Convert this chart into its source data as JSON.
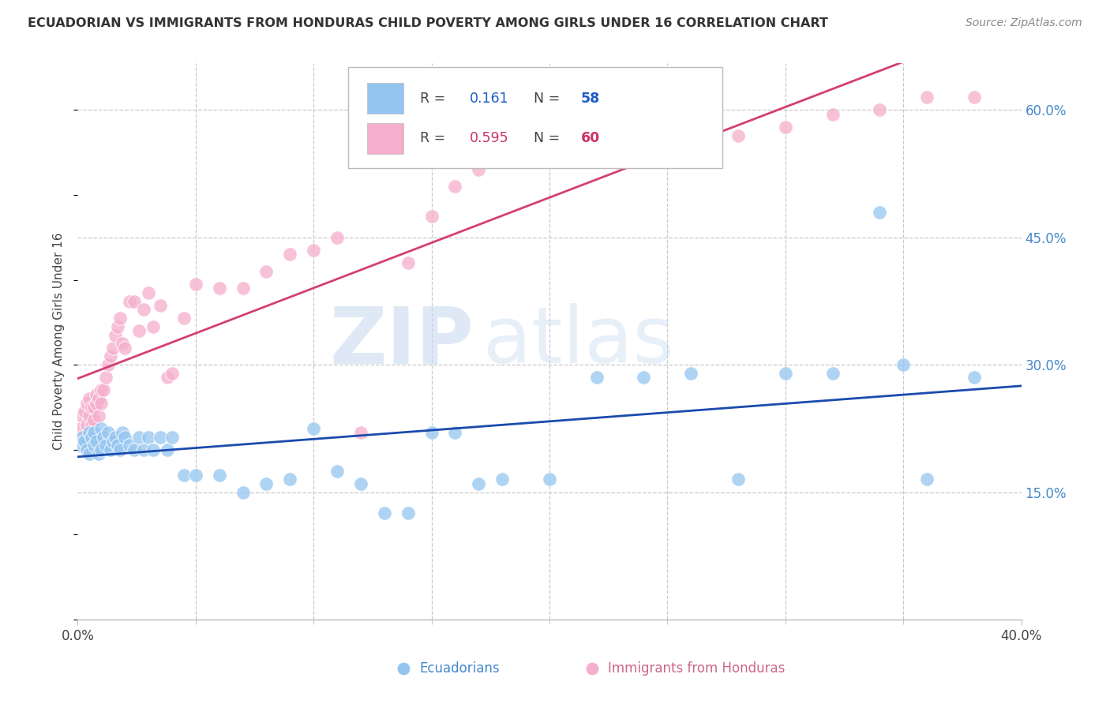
{
  "title": "ECUADORIAN VS IMMIGRANTS FROM HONDURAS CHILD POVERTY AMONG GIRLS UNDER 16 CORRELATION CHART",
  "source": "Source: ZipAtlas.com",
  "ylabel": "Child Poverty Among Girls Under 16",
  "xlim": [
    0.0,
    0.4
  ],
  "ylim": [
    0.0,
    0.655
  ],
  "y_ticks_right": [
    0.15,
    0.3,
    0.45,
    0.6
  ],
  "y_tick_labels_right": [
    "15.0%",
    "30.0%",
    "45.0%",
    "60.0%"
  ],
  "watermark_zip": "ZIP",
  "watermark_atlas": "atlas",
  "legend_blue_r": "0.161",
  "legend_blue_n": "58",
  "legend_pink_r": "0.595",
  "legend_pink_n": "60",
  "blue_color": "#94C5F0",
  "pink_color": "#F5AECC",
  "blue_line_color": "#1A4BAD",
  "pink_line_color": "#D44070",
  "grid_color": "#C8C8C8",
  "background_color": "#FFFFFF",
  "blue_x": [
    0.001,
    0.002,
    0.003,
    0.004,
    0.005,
    0.005,
    0.006,
    0.007,
    0.007,
    0.008,
    0.009,
    0.01,
    0.01,
    0.011,
    0.012,
    0.013,
    0.014,
    0.015,
    0.016,
    0.017,
    0.018,
    0.019,
    0.02,
    0.022,
    0.024,
    0.026,
    0.028,
    0.03,
    0.032,
    0.035,
    0.038,
    0.04,
    0.045,
    0.05,
    0.06,
    0.07,
    0.08,
    0.09,
    0.1,
    0.11,
    0.12,
    0.13,
    0.14,
    0.15,
    0.16,
    0.17,
    0.18,
    0.2,
    0.22,
    0.24,
    0.26,
    0.28,
    0.3,
    0.32,
    0.34,
    0.36,
    0.38,
    0.35
  ],
  "blue_y": [
    0.205,
    0.215,
    0.21,
    0.2,
    0.22,
    0.195,
    0.215,
    0.205,
    0.22,
    0.21,
    0.195,
    0.225,
    0.2,
    0.215,
    0.205,
    0.22,
    0.2,
    0.21,
    0.215,
    0.205,
    0.2,
    0.22,
    0.215,
    0.205,
    0.2,
    0.215,
    0.2,
    0.215,
    0.2,
    0.215,
    0.2,
    0.215,
    0.17,
    0.17,
    0.17,
    0.15,
    0.16,
    0.165,
    0.225,
    0.175,
    0.16,
    0.125,
    0.125,
    0.22,
    0.22,
    0.16,
    0.165,
    0.165,
    0.285,
    0.285,
    0.29,
    0.165,
    0.29,
    0.29,
    0.48,
    0.165,
    0.285,
    0.3
  ],
  "pink_x": [
    0.001,
    0.002,
    0.003,
    0.004,
    0.004,
    0.005,
    0.005,
    0.006,
    0.006,
    0.007,
    0.007,
    0.008,
    0.008,
    0.009,
    0.009,
    0.01,
    0.01,
    0.011,
    0.012,
    0.013,
    0.014,
    0.015,
    0.016,
    0.017,
    0.018,
    0.019,
    0.02,
    0.022,
    0.024,
    0.026,
    0.028,
    0.03,
    0.032,
    0.035,
    0.038,
    0.04,
    0.045,
    0.05,
    0.06,
    0.07,
    0.08,
    0.09,
    0.1,
    0.11,
    0.12,
    0.14,
    0.15,
    0.16,
    0.17,
    0.18,
    0.2,
    0.22,
    0.24,
    0.26,
    0.28,
    0.3,
    0.32,
    0.34,
    0.36,
    0.38
  ],
  "pink_y": [
    0.225,
    0.24,
    0.245,
    0.23,
    0.255,
    0.24,
    0.26,
    0.23,
    0.25,
    0.235,
    0.25,
    0.255,
    0.265,
    0.24,
    0.26,
    0.27,
    0.255,
    0.27,
    0.285,
    0.3,
    0.31,
    0.32,
    0.335,
    0.345,
    0.355,
    0.325,
    0.32,
    0.375,
    0.375,
    0.34,
    0.365,
    0.385,
    0.345,
    0.37,
    0.285,
    0.29,
    0.355,
    0.395,
    0.39,
    0.39,
    0.41,
    0.43,
    0.435,
    0.45,
    0.22,
    0.42,
    0.475,
    0.51,
    0.53,
    0.555,
    0.54,
    0.555,
    0.575,
    0.605,
    0.57,
    0.58,
    0.595,
    0.6,
    0.615,
    0.615
  ]
}
